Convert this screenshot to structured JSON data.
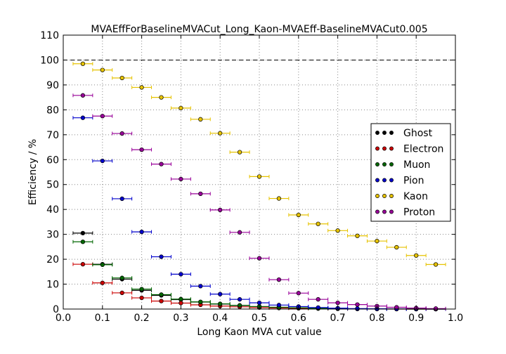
{
  "chart_data": {
    "type": "scatter",
    "title": "MVAEffForBaselineMVACut_Long_Kaon-MVAEff-BaselineMVACut0.005",
    "xlabel": "Long Kaon MVA cut value",
    "ylabel": "Efficiency / %",
    "xlim": [
      0.0,
      1.0
    ],
    "ylim": [
      0,
      110
    ],
    "x_ticks": [
      "0.0",
      "0.1",
      "0.2",
      "0.3",
      "0.4",
      "0.5",
      "0.6",
      "0.7",
      "0.8",
      "0.9",
      "1.0"
    ],
    "y_ticks": [
      "0",
      "10",
      "20",
      "30",
      "40",
      "50",
      "60",
      "70",
      "80",
      "90",
      "100",
      "110"
    ],
    "reference_line": 100,
    "grid": true,
    "legend_position": "right",
    "x_error": 0.025,
    "x": [
      0.05,
      0.1,
      0.15,
      0.2,
      0.25,
      0.3,
      0.35,
      0.4,
      0.45,
      0.5,
      0.55,
      0.6,
      0.65,
      0.7,
      0.75,
      0.8,
      0.85,
      0.9,
      0.95
    ],
    "series": [
      {
        "name": "Ghost",
        "color": "#000000",
        "values": [
          30.5,
          18.0,
          12.0,
          7.5,
          5.5,
          3.8,
          2.8,
          2.0,
          1.4,
          1.0,
          0.7,
          0.5,
          0.3,
          0.2,
          0.1,
          0.05,
          0.02,
          0.01,
          0.0
        ]
      },
      {
        "name": "Electron",
        "color": "#cc0000",
        "values": [
          18.0,
          10.5,
          6.5,
          4.5,
          3.2,
          2.4,
          1.7,
          1.2,
          0.9,
          0.6,
          0.4,
          0.3,
          0.2,
          0.1,
          0.05,
          0.02,
          0.01,
          0.0,
          0.0
        ]
      },
      {
        "name": "Muon",
        "color": "#006600",
        "values": [
          27.0,
          17.8,
          12.5,
          8.0,
          5.8,
          4.0,
          2.9,
          2.1,
          1.5,
          1.0,
          0.7,
          0.5,
          0.3,
          0.2,
          0.1,
          0.05,
          0.02,
          0.01,
          0.0
        ]
      },
      {
        "name": "Pion",
        "color": "#0000cc",
        "values": [
          76.8,
          59.5,
          44.3,
          31.0,
          21.0,
          14.0,
          9.2,
          6.0,
          3.9,
          2.5,
          1.6,
          1.0,
          0.6,
          0.35,
          0.2,
          0.1,
          0.05,
          0.02,
          0.0
        ]
      },
      {
        "name": "Kaon",
        "color": "#e6c200",
        "values": [
          98.5,
          96.0,
          92.8,
          89.0,
          85.0,
          80.7,
          76.2,
          70.6,
          63.0,
          53.2,
          44.4,
          37.8,
          34.2,
          31.5,
          29.4,
          27.3,
          24.8,
          21.5,
          17.9
        ]
      },
      {
        "name": "Proton",
        "color": "#990099",
        "values": [
          85.8,
          77.5,
          70.5,
          64.0,
          58.2,
          52.2,
          46.3,
          39.8,
          30.8,
          20.4,
          11.8,
          6.4,
          3.9,
          2.5,
          1.8,
          1.2,
          0.7,
          0.4,
          0.2
        ]
      }
    ]
  }
}
